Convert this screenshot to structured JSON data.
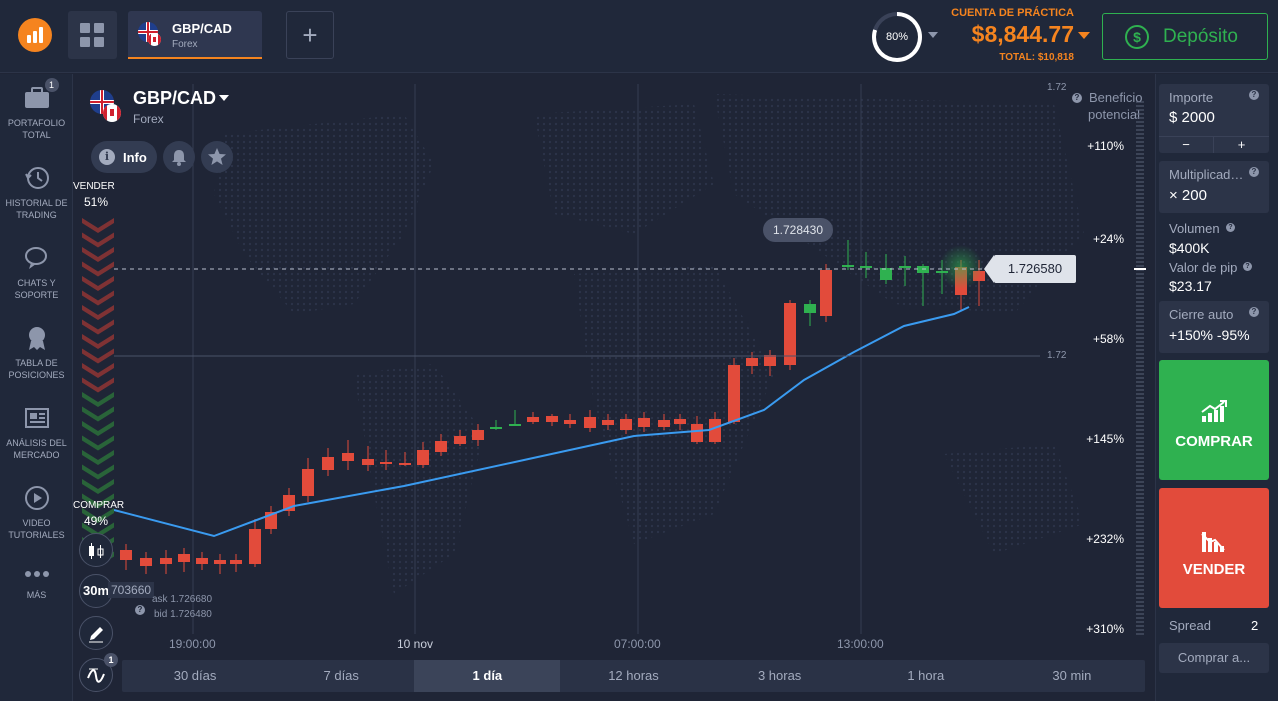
{
  "topbar": {
    "asset_tab": {
      "name": "GBP/CAD",
      "type": "Forex"
    },
    "add_tab_label": "+",
    "progress_percent": 80,
    "progress_label": "80%",
    "account": {
      "label": "CUENTA DE PRÁCTICA",
      "balance": "$8,844.77",
      "total": "TOTAL: $10,818"
    },
    "deposit_label": "Depósito",
    "colors": {
      "accent": "#f5841f",
      "green": "#2fb150",
      "red": "#e24b3b"
    }
  },
  "sidebar": {
    "items": [
      {
        "label_1": "PORTAFOLIO",
        "label_2": "TOTAL",
        "icon": "briefcase-icon",
        "badge": "1"
      },
      {
        "label_1": "HISTORIAL DE",
        "label_2": "TRADING",
        "icon": "history-icon"
      },
      {
        "label_1": "CHATS Y",
        "label_2": "SOPORTE",
        "icon": "chat-icon"
      },
      {
        "label_1": "TABLA DE",
        "label_2": "POSICIONES",
        "icon": "medal-icon"
      },
      {
        "label_1": "ANÁLISIS DEL",
        "label_2": "MERCADO",
        "icon": "newspaper-icon"
      },
      {
        "label_1": "VIDEO",
        "label_2": "TUTORIALES",
        "icon": "play-icon"
      },
      {
        "label_1": "MÁS",
        "label_2": "",
        "icon": "more-icon"
      }
    ]
  },
  "chart_header": {
    "pair": "GBP/CAD",
    "market": "Forex",
    "info_label": "Info"
  },
  "sentiment": {
    "sell_label": "VENDER",
    "sell_pct": "51%",
    "buy_label": "COMPRAR",
    "buy_pct": "49%",
    "sell_fraction": 0.51
  },
  "tools": {
    "timeframe": "30m",
    "indicator_badge": "1"
  },
  "price_info": {
    "partial_price": "703660",
    "ask": "ask 1.726680",
    "bid": "bid 1.726480"
  },
  "current_price": "1.726580",
  "high_price": "1.728430",
  "grid_labels": {
    "top": "1.72",
    "mid": "1.72"
  },
  "time_labels": [
    "19:00:00",
    "10 nov",
    "07:00:00",
    "13:00:00"
  ],
  "time_ranges": [
    "30 días",
    "7 días",
    "1 día",
    "12 horas",
    "3 horas",
    "1 hora",
    "30 min"
  ],
  "active_range_index": 2,
  "profit_header": {
    "line1": "Beneficio",
    "line2": "potencial"
  },
  "profit_scale": [
    "+110%",
    "+24%",
    "+58%",
    "+145%",
    "+232%",
    "+310%"
  ],
  "right_panel": {
    "amount": {
      "label": "Importe",
      "value": "$  2000",
      "minus": "−",
      "plus": "+"
    },
    "multiplier": {
      "label": "Multiplicad…",
      "value": "× 200"
    },
    "volume": {
      "label": "Volumen",
      "value": "$400K"
    },
    "pip": {
      "label": "Valor de pip",
      "value": "$23.17"
    },
    "auto_close": {
      "label": "Cierre auto",
      "value": "+150%  -95%"
    },
    "buy_label": "COMPRAR",
    "sell_label": "VENDER",
    "spread_label": "Spread",
    "spread_value": "2",
    "close_at_label": "Comprar a..."
  },
  "chart_data": {
    "type": "candlestick",
    "x": [
      "19:00:00",
      "10 nov",
      "07:00:00",
      "13:00:00"
    ],
    "ylabel": "",
    "current": 1.72658,
    "high_label": 1.72843
  }
}
